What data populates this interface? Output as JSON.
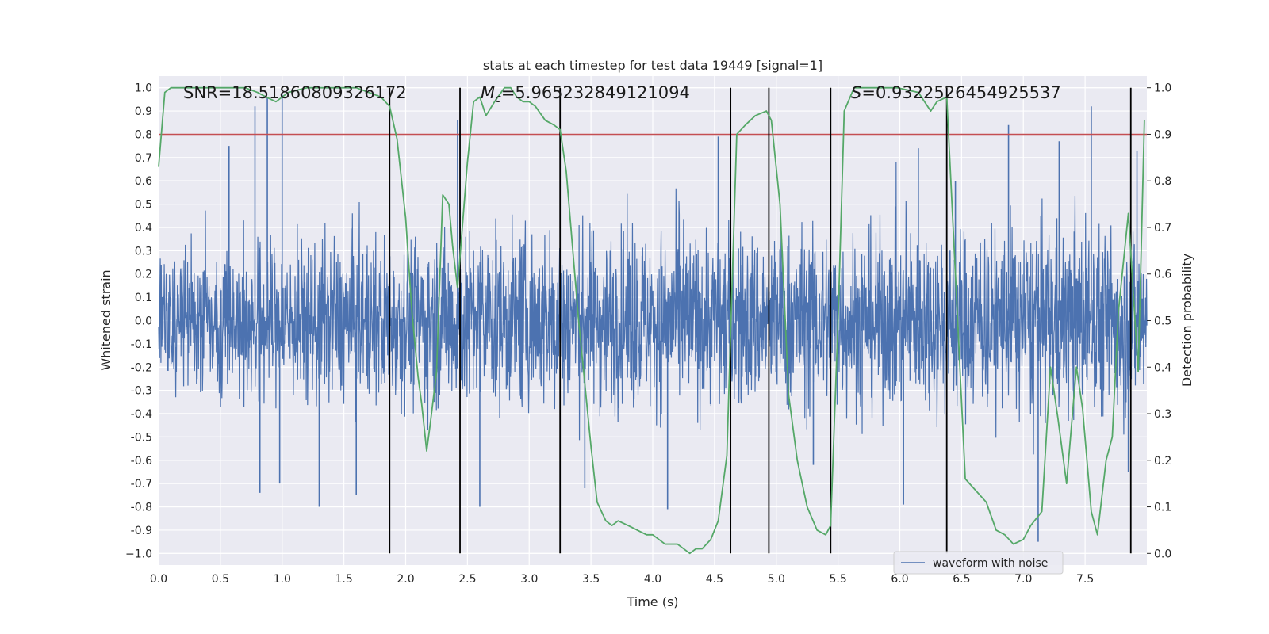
{
  "chart_data": {
    "type": "line",
    "title": "stats at each timestep for test data 19449 [signal=1]",
    "xlabel": "Time (s)",
    "ylabel": "Whitened strain",
    "y2label": "Detection probability",
    "xlim": [
      0.0,
      8.0
    ],
    "ylim": [
      -1.05,
      1.05
    ],
    "y2lim": [
      -0.025,
      1.025
    ],
    "xticks": [
      "0.0",
      "0.5",
      "1.0",
      "1.5",
      "2.0",
      "2.5",
      "3.0",
      "3.5",
      "4.0",
      "4.5",
      "5.0",
      "5.5",
      "6.0",
      "6.5",
      "7.0",
      "7.5"
    ],
    "yticks": [
      "1.0",
      "0.9",
      "0.8",
      "0.7",
      "0.6",
      "0.5",
      "0.4",
      "0.3",
      "0.2",
      "0.1",
      "0.0",
      "-0.1",
      "-0.2",
      "-0.3",
      "-0.4",
      "-0.5",
      "-0.6",
      "-0.7",
      "-0.8",
      "-0.9",
      "−1.0"
    ],
    "y2ticks": [
      "1.0",
      "0.9",
      "0.8",
      "0.7",
      "0.6",
      "0.5",
      "0.4",
      "0.3",
      "0.2",
      "0.1",
      "0.0"
    ],
    "grid": true,
    "legend_position": "lower-right",
    "annotations": {
      "snr": "SNR=18.51860809326172",
      "mc_symbol": "M",
      "mc_subscript": "c",
      "mc_value": "=5.965232849121094",
      "s_symbol": "S",
      "s_value": "=0.9322526454925537"
    },
    "threshold": {
      "value": 0.9,
      "axis": "right",
      "color": "#c44e52"
    },
    "vlines": [
      1.87,
      2.44,
      3.25,
      4.63,
      4.94,
      5.44,
      6.38,
      7.87
    ],
    "series": [
      {
        "name": "waveform with noise",
        "axis": "left",
        "color": "#4c72b0",
        "kind": "noise",
        "amplitude_profile": [
          [
            0.0,
            0.35
          ],
          [
            1.0,
            0.4
          ],
          [
            2.0,
            0.42
          ],
          [
            3.0,
            0.45
          ],
          [
            4.0,
            0.45
          ],
          [
            5.0,
            0.45
          ],
          [
            6.0,
            0.45
          ],
          [
            7.0,
            0.47
          ],
          [
            8.0,
            0.47
          ]
        ],
        "peaks": [
          {
            "x": 0.78,
            "y": 0.92
          },
          {
            "x": 0.88,
            "y": 0.96
          },
          {
            "x": 1.0,
            "y": 0.97
          },
          {
            "x": 0.57,
            "y": 0.75
          },
          {
            "x": 2.42,
            "y": 0.86
          },
          {
            "x": 4.53,
            "y": 0.79
          },
          {
            "x": 6.15,
            "y": 0.74
          },
          {
            "x": 6.88,
            "y": 0.84
          },
          {
            "x": 7.29,
            "y": 0.77
          },
          {
            "x": 7.55,
            "y": 0.92
          },
          {
            "x": 7.92,
            "y": 0.73
          },
          {
            "x": 6.45,
            "y": 0.6
          },
          {
            "x": 1.3,
            "y": -0.8
          },
          {
            "x": 1.6,
            "y": -0.75
          },
          {
            "x": 2.6,
            "y": -0.8
          },
          {
            "x": 4.12,
            "y": -0.81
          },
          {
            "x": 6.03,
            "y": -0.79
          },
          {
            "x": 7.12,
            "y": -0.95
          },
          {
            "x": 0.82,
            "y": -0.74
          },
          {
            "x": 0.98,
            "y": -0.7
          },
          {
            "x": 3.45,
            "y": -0.72
          },
          {
            "x": 7.85,
            "y": -0.65
          },
          {
            "x": 5.3,
            "y": -0.62
          }
        ]
      },
      {
        "name": "",
        "axis": "right",
        "color": "#55a868",
        "x": [
          0.0,
          0.05,
          0.1,
          0.2,
          0.4,
          0.6,
          0.7,
          0.8,
          0.87,
          0.95,
          1.05,
          1.2,
          1.4,
          1.6,
          1.7,
          1.8,
          1.87,
          1.93,
          2.0,
          2.05,
          2.1,
          2.13,
          2.17,
          2.2,
          2.25,
          2.3,
          2.35,
          2.38,
          2.42,
          2.5,
          2.55,
          2.6,
          2.65,
          2.72,
          2.8,
          2.85,
          2.9,
          2.95,
          3.0,
          3.05,
          3.13,
          3.2,
          3.25,
          3.3,
          3.4,
          3.5,
          3.55,
          3.62,
          3.67,
          3.72,
          3.8,
          3.95,
          4.0,
          4.1,
          4.2,
          4.3,
          4.35,
          4.4,
          4.47,
          4.53,
          4.6,
          4.68,
          4.75,
          4.83,
          4.92,
          4.96,
          5.03,
          5.1,
          5.17,
          5.25,
          5.33,
          5.4,
          5.44,
          5.5,
          5.55,
          5.63,
          5.8,
          5.98,
          6.15,
          6.25,
          6.3,
          6.38,
          6.45,
          6.53,
          6.7,
          6.78,
          6.85,
          6.92,
          7.0,
          7.06,
          7.15,
          7.22,
          7.28,
          7.35,
          7.43,
          7.48,
          7.55,
          7.6,
          7.67,
          7.72,
          7.77,
          7.85,
          7.93,
          7.98
        ],
        "values": [
          0.83,
          0.99,
          1.0,
          1.0,
          1.0,
          1.0,
          1.0,
          0.99,
          0.98,
          0.97,
          0.99,
          1.0,
          1.0,
          1.0,
          0.99,
          0.98,
          0.96,
          0.89,
          0.72,
          0.52,
          0.38,
          0.32,
          0.22,
          0.28,
          0.39,
          0.77,
          0.75,
          0.66,
          0.57,
          0.84,
          0.97,
          0.98,
          0.94,
          0.97,
          1.0,
          1.0,
          0.98,
          0.97,
          0.97,
          0.96,
          0.93,
          0.92,
          0.91,
          0.82,
          0.5,
          0.23,
          0.11,
          0.07,
          0.06,
          0.07,
          0.06,
          0.04,
          0.04,
          0.02,
          0.02,
          0.0,
          0.01,
          0.01,
          0.03,
          0.07,
          0.21,
          0.9,
          0.92,
          0.94,
          0.95,
          0.93,
          0.75,
          0.34,
          0.2,
          0.1,
          0.05,
          0.04,
          0.06,
          0.5,
          0.95,
          1.0,
          1.0,
          1.0,
          0.99,
          0.95,
          0.97,
          0.98,
          0.6,
          0.16,
          0.11,
          0.05,
          0.04,
          0.02,
          0.03,
          0.06,
          0.09,
          0.4,
          0.29,
          0.15,
          0.4,
          0.31,
          0.09,
          0.04,
          0.2,
          0.25,
          0.52,
          0.73,
          0.39,
          0.93
        ]
      }
    ]
  }
}
